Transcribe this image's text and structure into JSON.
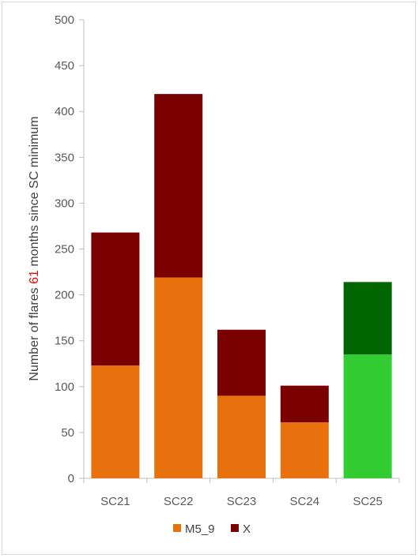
{
  "chart_data": {
    "type": "bar",
    "stacked": true,
    "categories": [
      "SC21",
      "SC22",
      "SC23",
      "SC24",
      "SC25"
    ],
    "series": [
      {
        "name": "M5_9",
        "values": [
          123,
          219,
          90,
          61,
          135
        ],
        "color": "#e8710e"
      },
      {
        "name": "X",
        "values": [
          145,
          200,
          72,
          40,
          79
        ],
        "color": "#7b0000"
      }
    ],
    "highlight": {
      "category": "SC25",
      "colors": [
        "#33cc33",
        "#006600"
      ]
    },
    "ylim": [
      0,
      500
    ],
    "yticks": [
      0,
      50,
      100,
      150,
      200,
      250,
      300,
      350,
      400,
      450,
      500
    ],
    "ylabel": {
      "before": "Number of flares ",
      "highlight": "61",
      "after": " months since SC minimum",
      "highlight_color": "#ff0000"
    },
    "grid": false,
    "legend_position": "bottom"
  }
}
